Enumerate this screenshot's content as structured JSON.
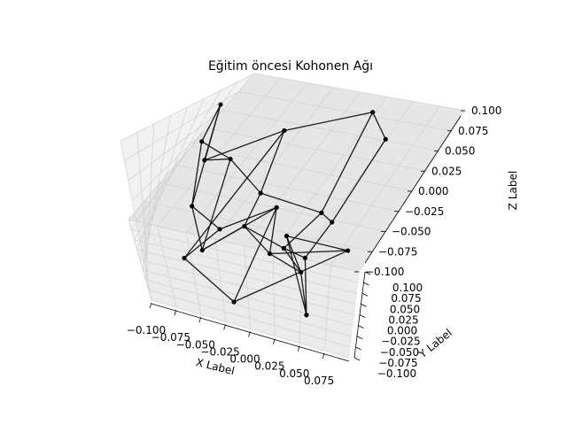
{
  "chart_data": {
    "type": "line3d",
    "title": "Eğitim öncesi Kohonen Ağı",
    "xlabel": "X Label",
    "ylabel": "Y Label",
    "zlabel": "Z Label",
    "xlim": [
      -0.1,
      0.1
    ],
    "ylim": [
      -0.1,
      0.1
    ],
    "zlim": [
      -0.1,
      0.1
    ],
    "x_ticks": [
      "−0.100",
      "−0.075",
      "−0.050",
      "−0.025",
      "0.000",
      "0.025",
      "0.050",
      "0.075"
    ],
    "y_ticks": [
      "−0.100",
      "−0.075",
      "−0.050",
      "−0.025",
      "0.000",
      "0.025",
      "0.050",
      "0.075",
      "0.100"
    ],
    "z_ticks": [
      "−0.100",
      "−0.075",
      "−0.050",
      "−0.025",
      "0.000",
      "0.025",
      "0.050",
      "0.075",
      "0.100"
    ],
    "grid": true,
    "line_color": "#1a1a1a",
    "marker_color": "#000000",
    "pane_color": "#f2f2f2",
    "nodes": [
      {
        "x": -0.095,
        "y": 0.055,
        "z": 0.08
      },
      {
        "x": -0.08,
        "y": 0.045,
        "z": 0.015
      },
      {
        "x": -0.035,
        "y": 0.08,
        "z": 0.05
      },
      {
        "x": 0.03,
        "y": 0.07,
        "z": 0.095
      },
      {
        "x": 0.065,
        "y": 0.025,
        "z": 0.09
      },
      {
        "x": -0.085,
        "y": 0.02,
        "z": 0.05
      },
      {
        "x": -0.06,
        "y": 0.05,
        "z": 0.02
      },
      {
        "x": -0.02,
        "y": 0.045,
        "z": -0.01
      },
      {
        "x": 0.04,
        "y": 0.01,
        "z": 0.0
      },
      {
        "x": 0.06,
        "y": -0.045,
        "z": 0.02
      },
      {
        "x": -0.07,
        "y": 0.0,
        "z": -0.02
      },
      {
        "x": -0.05,
        "y": -0.04,
        "z": -0.05
      },
      {
        "x": -0.02,
        "y": 0.0,
        "z": -0.03
      },
      {
        "x": 0.02,
        "y": -0.01,
        "z": -0.04
      },
      {
        "x": 0.045,
        "y": -0.06,
        "z": -0.02
      },
      {
        "x": -0.04,
        "y": 0.01,
        "z": -0.045
      },
      {
        "x": 0.0,
        "y": 0.02,
        "z": -0.01
      },
      {
        "x": 0.01,
        "y": -0.03,
        "z": -0.04
      },
      {
        "x": 0.045,
        "y": -0.075,
        "z": -0.03
      },
      {
        "x": 0.055,
        "y": -0.09,
        "z": -0.07
      },
      {
        "x": -0.065,
        "y": -0.03,
        "z": -0.07
      },
      {
        "x": -0.015,
        "y": -0.055,
        "z": -0.095
      },
      {
        "x": 0.09,
        "y": -0.1,
        "z": 0.02
      },
      {
        "x": 0.02,
        "y": -0.02,
        "z": -0.02
      }
    ],
    "edges": [
      [
        0,
        1
      ],
      [
        1,
        2
      ],
      [
        2,
        3
      ],
      [
        3,
        4
      ],
      [
        0,
        5
      ],
      [
        5,
        6
      ],
      [
        6,
        7
      ],
      [
        7,
        8
      ],
      [
        8,
        9
      ],
      [
        1,
        6
      ],
      [
        2,
        7
      ],
      [
        3,
        8
      ],
      [
        4,
        9
      ],
      [
        5,
        10
      ],
      [
        10,
        11
      ],
      [
        11,
        12
      ],
      [
        12,
        13
      ],
      [
        13,
        14
      ],
      [
        6,
        11
      ],
      [
        7,
        12
      ],
      [
        8,
        13
      ],
      [
        9,
        14
      ],
      [
        10,
        15
      ],
      [
        15,
        16
      ],
      [
        16,
        17
      ],
      [
        17,
        18
      ],
      [
        18,
        19
      ],
      [
        11,
        16
      ],
      [
        12,
        17
      ],
      [
        13,
        18
      ],
      [
        14,
        19
      ],
      [
        15,
        20
      ],
      [
        20,
        21
      ],
      [
        21,
        22
      ],
      [
        22,
        23
      ],
      [
        16,
        21
      ],
      [
        17,
        22
      ],
      [
        18,
        23
      ],
      [
        19,
        23
      ],
      [
        2,
        20
      ],
      [
        0,
        10
      ]
    ]
  }
}
